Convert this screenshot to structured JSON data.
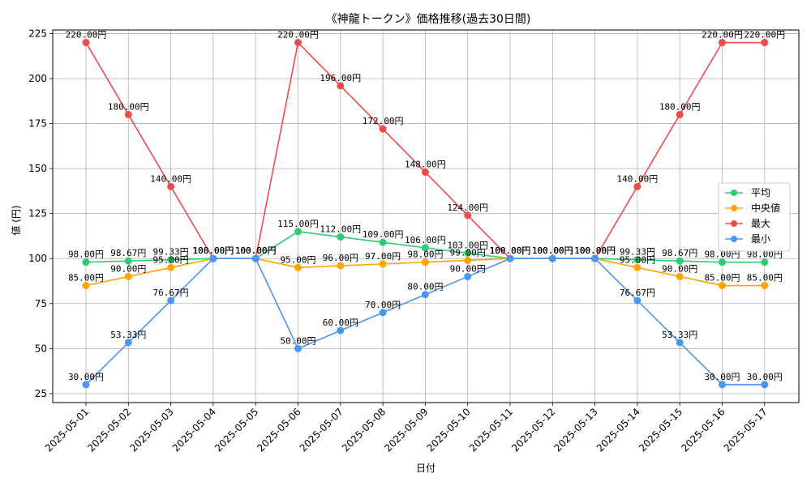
{
  "chart_data": {
    "type": "line",
    "title": "《神龍トークン》価格推移(過去30日間)",
    "xlabel": "日付",
    "ylabel": "値 (円)",
    "categories": [
      "2025-05-01",
      "2025-05-02",
      "2025-05-03",
      "2025-05-04",
      "2025-05-05",
      "2025-05-06",
      "2025-05-07",
      "2025-05-08",
      "2025-05-09",
      "2025-05-10",
      "2025-05-11",
      "2025-05-12",
      "2025-05-13",
      "2025-05-14",
      "2025-05-15",
      "2025-05-16",
      "2025-05-17"
    ],
    "ylim": [
      20,
      227
    ],
    "yticks": [
      25,
      50,
      75,
      100,
      125,
      150,
      175,
      200,
      225
    ],
    "grid": true,
    "legend_position": "center-right",
    "value_suffix": "円",
    "series": [
      {
        "name": "平均",
        "color": "#2ecc71",
        "values": [
          98.0,
          98.67,
          99.33,
          100.0,
          100.0,
          115.0,
          112.0,
          109.0,
          106.0,
          103.0,
          100.0,
          100.0,
          100.0,
          99.33,
          98.67,
          98.0,
          98.0
        ]
      },
      {
        "name": "中央値",
        "color": "#ffa500",
        "values": [
          85.0,
          90.0,
          95.0,
          100.0,
          100.0,
          95.0,
          96.0,
          97.0,
          98.0,
          99.0,
          100.0,
          100.0,
          100.0,
          95.0,
          90.0,
          85.0,
          85.0
        ]
      },
      {
        "name": "最大",
        "color": "#ef4b4b",
        "values": [
          220.0,
          180.0,
          140.0,
          100.0,
          100.0,
          220.0,
          196.0,
          172.0,
          148.0,
          124.0,
          100.0,
          100.0,
          100.0,
          140.0,
          180.0,
          220.0,
          220.0
        ]
      },
      {
        "name": "最小",
        "color": "#4a96f3",
        "values": [
          30.0,
          53.33,
          76.67,
          100.0,
          100.0,
          50.0,
          60.0,
          70.0,
          80.0,
          90.0,
          100.0,
          100.0,
          100.0,
          76.67,
          53.33,
          30.0,
          30.0
        ]
      }
    ]
  }
}
